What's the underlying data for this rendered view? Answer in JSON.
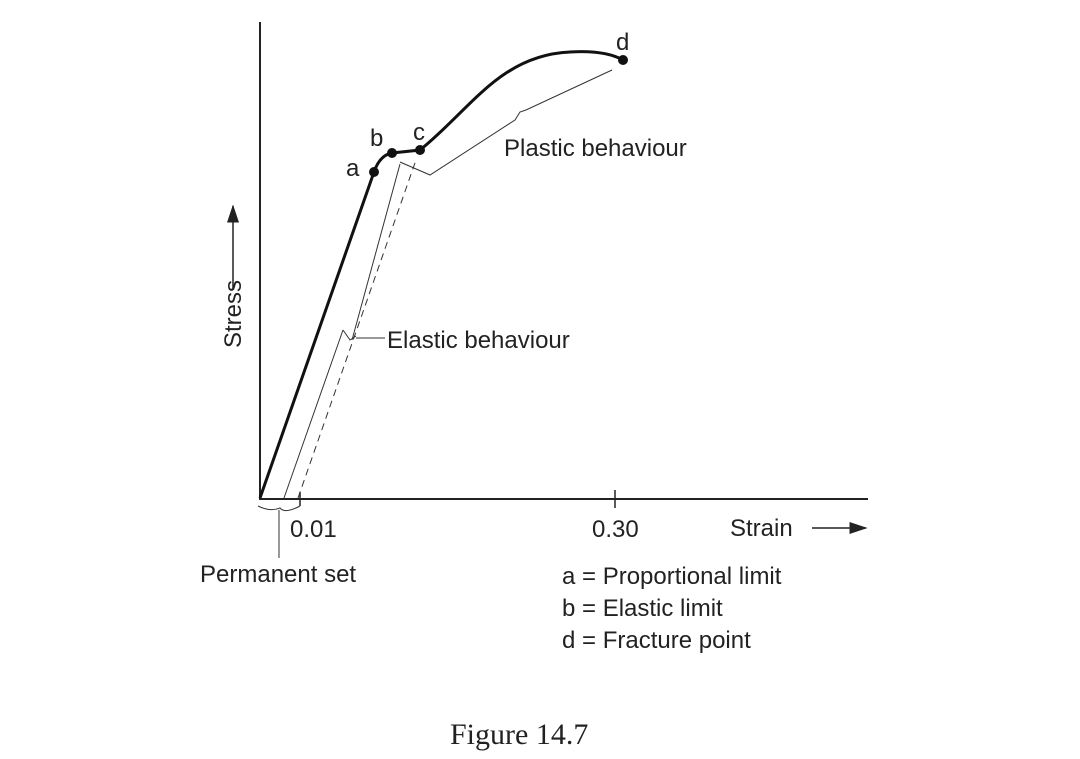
{
  "diagram": {
    "axes": {
      "y_label": "Stress",
      "x_label": "Strain",
      "x_marks": [
        "0.01",
        "0.30"
      ]
    },
    "points": {
      "a": "a",
      "b": "b",
      "c": "c",
      "d": "d"
    },
    "regions": {
      "plastic": "Plastic behaviour",
      "elastic": "Elastic behaviour",
      "permanent": "Permanent set"
    },
    "key": [
      "a = Proportional limit",
      "b = Elastic limit",
      "d = Fracture point"
    ],
    "caption": "Figure 14.7"
  }
}
